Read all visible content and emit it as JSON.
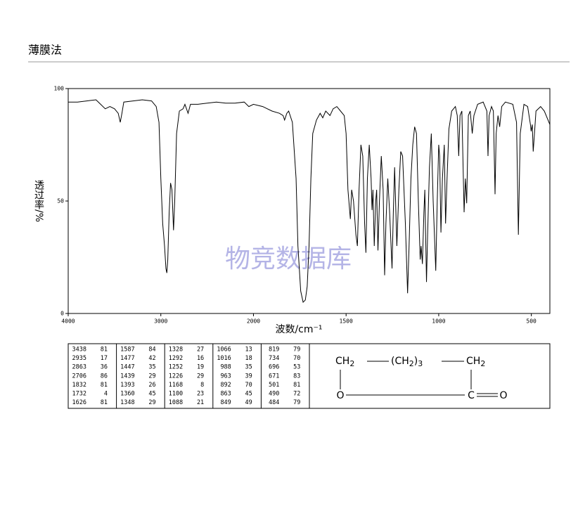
{
  "header": {
    "title": "薄膜法"
  },
  "chart_data": {
    "type": "line",
    "watermark": "物竞数据库",
    "xlabel": "波数/cm⁻¹",
    "ylabel": "透过率/%",
    "xlim": [
      4000,
      400
    ],
    "ylim": [
      0,
      100
    ],
    "xticks": [
      4000,
      3000,
      2000,
      1500,
      1000,
      500
    ],
    "yticks": [
      0,
      50,
      100
    ],
    "color": "#000000",
    "x": [
      4000,
      3900,
      3800,
      3700,
      3650,
      3600,
      3550,
      3500,
      3460,
      3438,
      3420,
      3400,
      3300,
      3200,
      3100,
      3050,
      3020,
      3000,
      2980,
      2960,
      2945,
      2935,
      2925,
      2910,
      2895,
      2880,
      2863,
      2850,
      2830,
      2800,
      2760,
      2740,
      2706,
      2680,
      2600,
      2500,
      2400,
      2300,
      2200,
      2100,
      2050,
      2000,
      1950,
      1900,
      1860,
      1840,
      1832,
      1820,
      1810,
      1790,
      1770,
      1760,
      1745,
      1732,
      1720,
      1710,
      1700,
      1690,
      1680,
      1660,
      1640,
      1626,
      1610,
      1587,
      1570,
      1550,
      1530,
      1510,
      1500,
      1490,
      1480,
      1477,
      1470,
      1460,
      1447,
      1439,
      1430,
      1420,
      1410,
      1400,
      1393,
      1385,
      1375,
      1365,
      1360,
      1355,
      1348,
      1340,
      1335,
      1328,
      1320,
      1310,
      1300,
      1292,
      1285,
      1275,
      1265,
      1252,
      1245,
      1238,
      1226,
      1215,
      1205,
      1195,
      1180,
      1168,
      1160,
      1150,
      1140,
      1130,
      1120,
      1110,
      1100,
      1095,
      1088,
      1080,
      1075,
      1066,
      1060,
      1050,
      1040,
      1030,
      1016,
      1008,
      1000,
      995,
      988,
      980,
      970,
      963,
      955,
      945,
      930,
      910,
      900,
      892,
      885,
      875,
      863,
      856,
      849,
      840,
      830,
      819,
      810,
      790,
      760,
      740,
      734,
      728,
      715,
      705,
      696,
      690,
      680,
      671,
      660,
      640,
      600,
      580,
      570,
      560,
      540,
      520,
      505,
      501,
      495,
      490,
      484,
      475,
      450,
      430,
      400
    ],
    "values": [
      94,
      94,
      94.5,
      95,
      93,
      91,
      92,
      91,
      89,
      85,
      89,
      94,
      94.5,
      95,
      94.5,
      92,
      85,
      60,
      40,
      30,
      20,
      18,
      24,
      45,
      58,
      55,
      37,
      50,
      80,
      90,
      91,
      93,
      89,
      93,
      93,
      93.5,
      94,
      93.5,
      93.5,
      94,
      92,
      93,
      92,
      90,
      89,
      88,
      86,
      89,
      90,
      85,
      60,
      30,
      10,
      5,
      6,
      12,
      30,
      60,
      80,
      86,
      89,
      87,
      90,
      88,
      91,
      92,
      90,
      88,
      80,
      55,
      45,
      42,
      55,
      50,
      35,
      30,
      55,
      75,
      70,
      40,
      27,
      60,
      75,
      60,
      46,
      55,
      30,
      50,
      55,
      28,
      50,
      70,
      55,
      17,
      40,
      60,
      45,
      20,
      45,
      65,
      30,
      55,
      72,
      70,
      40,
      9,
      30,
      60,
      75,
      83,
      80,
      50,
      24,
      30,
      22,
      45,
      55,
      14,
      35,
      65,
      80,
      50,
      19,
      50,
      75,
      70,
      36,
      60,
      75,
      40,
      60,
      82,
      90,
      92,
      88,
      70,
      88,
      90,
      45,
      60,
      49,
      88,
      90,
      80,
      88,
      93,
      94,
      90,
      70,
      88,
      92,
      90,
      53,
      80,
      88,
      83,
      92,
      94,
      93,
      85,
      35,
      80,
      93,
      92,
      84,
      81,
      84,
      72,
      79,
      90,
      92,
      90,
      84
    ]
  },
  "peaks": [
    [
      3438,
      81
    ],
    [
      2935,
      17
    ],
    [
      2863,
      36
    ],
    [
      2706,
      86
    ],
    [
      1832,
      81
    ],
    [
      1732,
      4
    ],
    [
      1626,
      81
    ],
    [
      1587,
      84
    ],
    [
      1477,
      42
    ],
    [
      1447,
      35
    ],
    [
      1439,
      29
    ],
    [
      1393,
      26
    ],
    [
      1360,
      45
    ],
    [
      1348,
      29
    ],
    [
      1328,
      27
    ],
    [
      1292,
      16
    ],
    [
      1252,
      19
    ],
    [
      1226,
      29
    ],
    [
      1168,
      8
    ],
    [
      1100,
      23
    ],
    [
      1088,
      21
    ],
    [
      1066,
      13
    ],
    [
      1016,
      18
    ],
    [
      988,
      35
    ],
    [
      963,
      39
    ],
    [
      892,
      70
    ],
    [
      863,
      45
    ],
    [
      849,
      49
    ],
    [
      819,
      79
    ],
    [
      734,
      70
    ],
    [
      696,
      53
    ],
    [
      671,
      83
    ],
    [
      501,
      81
    ],
    [
      490,
      72
    ],
    [
      484,
      79
    ]
  ],
  "structure": {
    "left_group": "CH",
    "left_sub": "2",
    "middle_group": "(CH",
    "middle_sub": "2",
    "middle_close": ")",
    "middle_count": "3",
    "right_group": "CH",
    "right_sub": "2",
    "ring_oxygen": "O",
    "carbonyl_carbon": "C",
    "carbonyl_oxygen": "O"
  }
}
